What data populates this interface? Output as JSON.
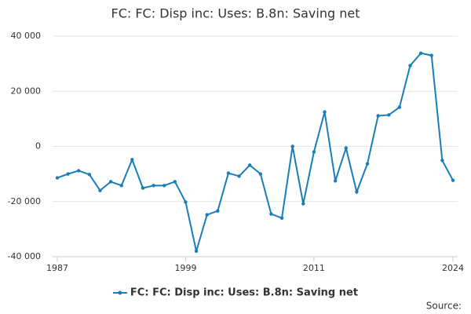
{
  "chart_data": {
    "type": "line",
    "title": "FC: FC: Disp inc: Uses: B.8n: Saving net",
    "x": [
      1987,
      1988,
      1989,
      1990,
      1991,
      1992,
      1993,
      1994,
      1995,
      1996,
      1997,
      1998,
      1999,
      2000,
      2001,
      2002,
      2003,
      2004,
      2005,
      2006,
      2007,
      2008,
      2009,
      2010,
      2011,
      2012,
      2013,
      2014,
      2015,
      2016,
      2017,
      2018,
      2019,
      2020,
      2021,
      2022,
      2023,
      2024
    ],
    "series": [
      {
        "name": "FC: FC: Disp inc: Uses: B.8n: Saving net",
        "color": "#1a7db8",
        "values": [
          -11400,
          -10000,
          -8800,
          -10200,
          -16000,
          -12800,
          -14200,
          -4800,
          -15100,
          -14200,
          -14200,
          -12800,
          -20200,
          -38000,
          -24800,
          -23400,
          -9700,
          -10800,
          -6800,
          -10000,
          -24500,
          -26000,
          0,
          -20800,
          -2000,
          12500,
          -12500,
          -600,
          -16500,
          -6300,
          11100,
          11400,
          14200,
          29300,
          33800,
          33000,
          -5100,
          -12300
        ]
      }
    ],
    "xlim": [
      1987,
      2024
    ],
    "xticks": [
      1987,
      1999,
      2011,
      2024
    ],
    "ylim": [
      -40000,
      40000
    ],
    "yticks": [
      {
        "value": -40000,
        "label": "-40 000"
      },
      {
        "value": -20000,
        "label": "-20 000"
      },
      0,
      {
        "value": 20000,
        "label": "20 000"
      },
      {
        "value": 40000,
        "label": "40 000"
      }
    ],
    "grid": true,
    "legend": "bottom",
    "source": "Source:"
  }
}
